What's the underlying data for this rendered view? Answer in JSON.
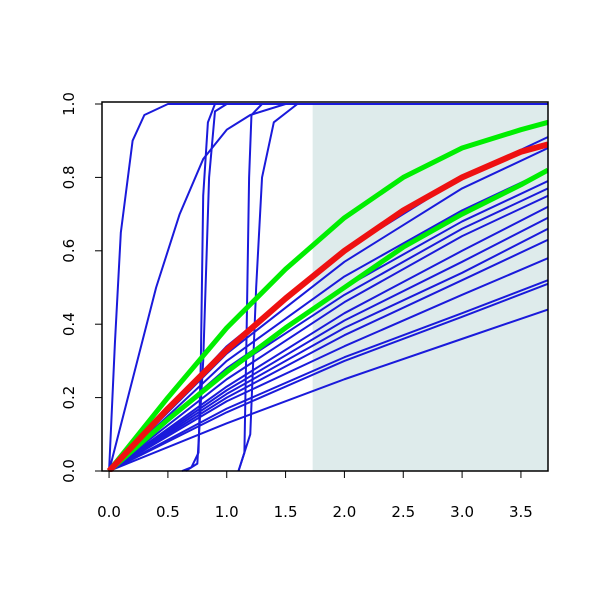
{
  "chart_data": {
    "type": "line",
    "xlim": [
      -0.06,
      3.73
    ],
    "ylim": [
      0,
      1
    ],
    "xticks": [
      {
        "value": 0,
        "label": "0.0"
      },
      {
        "value": 0.5,
        "label": "0.5"
      },
      {
        "value": 1,
        "label": "1.0"
      },
      {
        "value": 1.5,
        "label": "1.5"
      },
      {
        "value": 2,
        "label": "2.0"
      },
      {
        "value": 2.5,
        "label": "2.5"
      },
      {
        "value": 3,
        "label": "3.0"
      },
      {
        "value": 3.5,
        "label": "3.5"
      }
    ],
    "yticks": [
      {
        "value": 0,
        "label": "0.0"
      },
      {
        "value": 0.2,
        "label": "0.2"
      },
      {
        "value": 0.4,
        "label": "0.4"
      },
      {
        "value": 0.6,
        "label": "0.6"
      },
      {
        "value": 0.8,
        "label": "0.8"
      },
      {
        "value": 1,
        "label": "1.0"
      }
    ],
    "shaded_region": {
      "x": [
        1.73,
        3.73
      ],
      "color": "#deebeb"
    },
    "series": [
      {
        "color": "#1a1adb",
        "width": 2,
        "x": [
          0,
          0.05,
          0.1,
          0.2,
          0.3,
          0.5,
          3.73
        ],
        "values": [
          0,
          0.35,
          0.65,
          0.9,
          0.97,
          1,
          1
        ]
      },
      {
        "color": "#1a1adb",
        "width": 2,
        "x": [
          0,
          0.2,
          0.4,
          0.6,
          0.8,
          1,
          1.2,
          1.5,
          3.73
        ],
        "values": [
          0,
          0.25,
          0.5,
          0.7,
          0.85,
          0.93,
          0.97,
          1,
          1
        ]
      },
      {
        "color": "#1a1adb",
        "width": 2,
        "x": [
          0.65,
          0.75,
          0.8,
          0.85,
          0.9,
          1,
          3.73
        ],
        "values": [
          0,
          0.02,
          0.3,
          0.8,
          0.98,
          1,
          1
        ]
      },
      {
        "color": "#1a1adb",
        "width": 2,
        "x": [
          0.62,
          0.7,
          0.76,
          0.78,
          0.8,
          0.84,
          0.9,
          3.73
        ],
        "values": [
          0,
          0.01,
          0.05,
          0.3,
          0.75,
          0.95,
          1,
          1
        ]
      },
      {
        "color": "#1a1adb",
        "width": 2,
        "x": [
          1.1,
          1.15,
          1.17,
          1.19,
          1.21,
          1.3,
          3.73
        ],
        "values": [
          0,
          0.05,
          0.4,
          0.8,
          0.97,
          1,
          1
        ]
      },
      {
        "color": "#1a1adb",
        "width": 2,
        "x": [
          1.1,
          1.2,
          1.25,
          1.3,
          1.4,
          1.6,
          3.73
        ],
        "values": [
          0,
          0.1,
          0.5,
          0.8,
          0.95,
          1,
          1
        ]
      },
      {
        "color": "#1a1adb",
        "width": 2,
        "x": [
          0,
          1,
          2,
          3,
          3.73
        ],
        "values": [
          0,
          0.34,
          0.6,
          0.8,
          0.91
        ]
      },
      {
        "color": "#1a1adb",
        "width": 2,
        "x": [
          0,
          1,
          2,
          3,
          3.73
        ],
        "values": [
          0,
          0.32,
          0.57,
          0.77,
          0.88
        ]
      },
      {
        "color": "#1a1adb",
        "width": 2,
        "x": [
          0,
          1,
          2,
          3,
          3.73
        ],
        "values": [
          0,
          0.3,
          0.53,
          0.71,
          0.82
        ]
      },
      {
        "color": "#1a1adb",
        "width": 2,
        "x": [
          0,
          1,
          2,
          3,
          3.73
        ],
        "values": [
          0,
          0.28,
          0.5,
          0.68,
          0.79
        ]
      },
      {
        "color": "#1a1adb",
        "width": 2,
        "x": [
          0,
          1,
          2,
          3,
          3.73
        ],
        "values": [
          0,
          0.27,
          0.48,
          0.66,
          0.77
        ]
      },
      {
        "color": "#1a1adb",
        "width": 2,
        "x": [
          0,
          1,
          2,
          3,
          3.73
        ],
        "values": [
          0,
          0.25,
          0.46,
          0.64,
          0.75
        ]
      },
      {
        "color": "#1a1adb",
        "width": 2,
        "x": [
          0,
          1,
          2,
          3,
          3.73
        ],
        "values": [
          0,
          0.23,
          0.43,
          0.6,
          0.72
        ]
      },
      {
        "color": "#1a1adb",
        "width": 2,
        "x": [
          0,
          1,
          2,
          3,
          3.73
        ],
        "values": [
          0,
          0.22,
          0.41,
          0.57,
          0.69
        ]
      },
      {
        "color": "#1a1adb",
        "width": 2,
        "x": [
          0,
          1,
          2,
          3,
          3.73
        ],
        "values": [
          0,
          0.21,
          0.39,
          0.54,
          0.66
        ]
      },
      {
        "color": "#1a1adb",
        "width": 2,
        "x": [
          0,
          1,
          2,
          3,
          3.73
        ],
        "values": [
          0,
          0.2,
          0.37,
          0.52,
          0.63
        ]
      },
      {
        "color": "#1a1adb",
        "width": 2,
        "x": [
          0,
          1,
          2,
          3,
          3.73
        ],
        "values": [
          0,
          0.19,
          0.34,
          0.48,
          0.58
        ]
      },
      {
        "color": "#1a1adb",
        "width": 2,
        "x": [
          0,
          1,
          2,
          3,
          3.73
        ],
        "values": [
          0,
          0.17,
          0.31,
          0.43,
          0.52
        ]
      },
      {
        "color": "#1a1adb",
        "width": 2,
        "x": [
          0,
          1,
          2,
          3,
          3.73
        ],
        "values": [
          0,
          0.16,
          0.3,
          0.42,
          0.51
        ]
      },
      {
        "color": "#1a1adb",
        "width": 2,
        "x": [
          0,
          1,
          2,
          3,
          3.73
        ],
        "values": [
          0,
          0.13,
          0.25,
          0.36,
          0.44
        ]
      },
      {
        "color": "#00ee00",
        "width": 5,
        "x": [
          0,
          0.5,
          1,
          1.5,
          2,
          2.5,
          3,
          3.5,
          3.73
        ],
        "values": [
          0,
          0.2,
          0.39,
          0.55,
          0.69,
          0.8,
          0.88,
          0.93,
          0.95
        ]
      },
      {
        "color": "#00ee00",
        "width": 5,
        "x": [
          0,
          0.5,
          1,
          1.5,
          2,
          2.5,
          3,
          3.5,
          3.73
        ],
        "values": [
          0,
          0.14,
          0.27,
          0.39,
          0.5,
          0.61,
          0.7,
          0.78,
          0.82
        ]
      },
      {
        "color": "#ee1111",
        "width": 6,
        "x": [
          0,
          0.5,
          1,
          1.5,
          2,
          2.5,
          3,
          3.5,
          3.73
        ],
        "values": [
          0,
          0.17,
          0.33,
          0.47,
          0.6,
          0.71,
          0.8,
          0.87,
          0.89
        ]
      }
    ]
  }
}
